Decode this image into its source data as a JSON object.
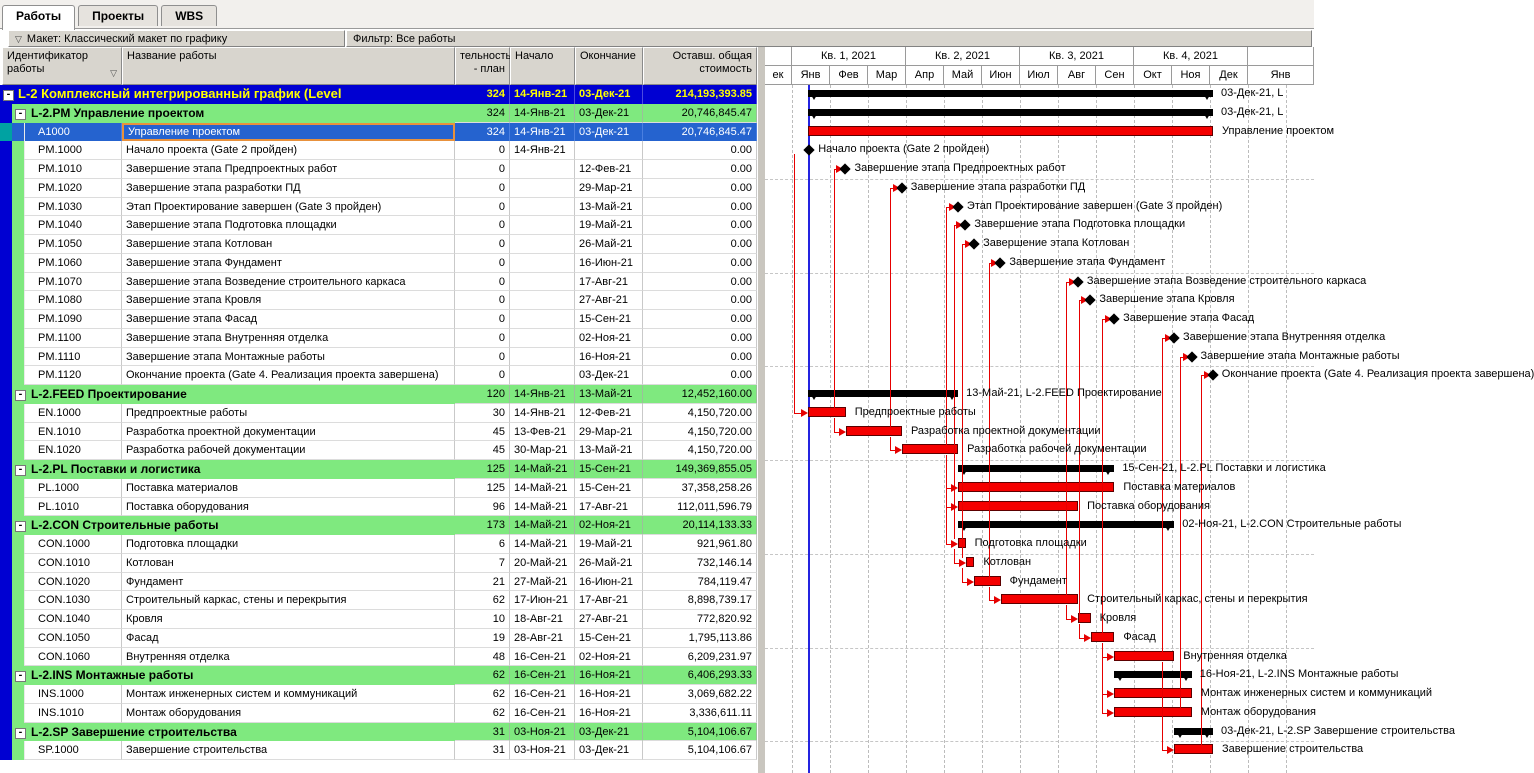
{
  "tabs": [
    {
      "label": "Работы",
      "active": true
    },
    {
      "label": "Проекты",
      "active": false
    },
    {
      "label": "WBS",
      "active": false
    }
  ],
  "toolbar": {
    "layout_label": "Макет: Классический макет по графику",
    "filter_label": "Фильтр: Все работы",
    "chevron_icon": "▽"
  },
  "table": {
    "columns": {
      "id": {
        "line1": "Идентификатор",
        "line2": "работы",
        "filter_icon": "▽"
      },
      "name": {
        "line1": "Название работы"
      },
      "duration": {
        "line1": "тельность",
        "line2": "- план"
      },
      "start": {
        "line1": "Начало"
      },
      "finish": {
        "line1": "Окончание"
      },
      "cost": {
        "line1": "Оставш. общая",
        "line2": "стоимость"
      }
    },
    "rows": [
      {
        "type": "project",
        "title": "L-2  Комплексный интегрированный график (Level",
        "dur": "324",
        "start": "14-Янв-21",
        "finish": "03-Дек-21",
        "cost": "214,193,393.85",
        "bar": {
          "kind": "summary",
          "s": "2021-01-14",
          "e": "2021-12-03",
          "label": "03-Дек-21, L"
        }
      },
      {
        "type": "section",
        "title": "L-2.PM  Управление проектом",
        "dur": "324",
        "start": "14-Янв-21",
        "finish": "03-Дек-21",
        "cost": "20,746,845.47",
        "bar": {
          "kind": "summary",
          "s": "2021-01-14",
          "e": "2021-12-03",
          "label": "03-Дек-21, L"
        }
      },
      {
        "type": "activity",
        "selected": true,
        "id": "A1000",
        "name": "Управление проектом",
        "dur": "324",
        "start": "14-Янв-21",
        "finish": "03-Дек-21",
        "cost": "20,746,845.47",
        "bar": {
          "kind": "task",
          "s": "2021-01-14",
          "e": "2021-12-03",
          "label": "Управление проектом"
        }
      },
      {
        "type": "activity",
        "id": "PM.1000",
        "name": "Начало проекта (Gate 2 пройден)",
        "dur": "0",
        "start": "14-Янв-21",
        "finish": "",
        "cost": "0.00",
        "bar": {
          "kind": "milestone",
          "d": "2021-01-14",
          "label": "Начало проекта (Gate 2 пройден)"
        }
      },
      {
        "type": "activity",
        "id": "PM.1010",
        "name": "Завершение этапа Предпроектных работ",
        "dur": "0",
        "start": "",
        "finish": "12-Фев-21",
        "cost": "0.00",
        "bar": {
          "kind": "milestone",
          "d": "2021-02-12",
          "label": "Завершение этапа Предпроектных работ"
        }
      },
      {
        "type": "activity",
        "id": "PM.1020",
        "name": "Завершение этапа разработки ПД",
        "dur": "0",
        "start": "",
        "finish": "29-Мар-21",
        "cost": "0.00",
        "bar": {
          "kind": "milestone",
          "d": "2021-03-29",
          "label": "Завершение этапа разработки ПД"
        }
      },
      {
        "type": "activity",
        "id": "PM.1030",
        "name": "Этап Проектирование завершен (Gate 3 пройден)",
        "dur": "0",
        "start": "",
        "finish": "13-Май-21",
        "cost": "0.00",
        "bar": {
          "kind": "milestone",
          "d": "2021-05-13",
          "label": "Этап Проектирование завершен (Gate 3 пройден)"
        }
      },
      {
        "type": "activity",
        "id": "PM.1040",
        "name": "Завершение этапа Подготовка площадки",
        "dur": "0",
        "start": "",
        "finish": "19-Май-21",
        "cost": "0.00",
        "bar": {
          "kind": "milestone",
          "d": "2021-05-19",
          "label": "Завершение этапа Подготовка площадки"
        }
      },
      {
        "type": "activity",
        "id": "PM.1050",
        "name": "Завершение этапа Котлован",
        "dur": "0",
        "start": "",
        "finish": "26-Май-21",
        "cost": "0.00",
        "bar": {
          "kind": "milestone",
          "d": "2021-05-26",
          "label": "Завершение этапа Котлован"
        }
      },
      {
        "type": "activity",
        "id": "PM.1060",
        "name": "Завершение этапа Фундамент",
        "dur": "0",
        "start": "",
        "finish": "16-Июн-21",
        "cost": "0.00",
        "bar": {
          "kind": "milestone",
          "d": "2021-06-16",
          "label": "Завершение этапа Фундамент"
        }
      },
      {
        "type": "activity",
        "id": "PM.1070",
        "name": "Завершение этапа Возведение строительного каркаса",
        "dur": "0",
        "start": "",
        "finish": "17-Авг-21",
        "cost": "0.00",
        "bar": {
          "kind": "milestone",
          "d": "2021-08-17",
          "label": "Завершение этапа Возведение строительного каркаса"
        }
      },
      {
        "type": "activity",
        "id": "PM.1080",
        "name": "Завершение этапа Кровля",
        "dur": "0",
        "start": "",
        "finish": "27-Авг-21",
        "cost": "0.00",
        "bar": {
          "kind": "milestone",
          "d": "2021-08-27",
          "label": "Завершение этапа Кровля"
        }
      },
      {
        "type": "activity",
        "id": "PM.1090",
        "name": "Завершение этапа Фасад",
        "dur": "0",
        "start": "",
        "finish": "15-Сен-21",
        "cost": "0.00",
        "bar": {
          "kind": "milestone",
          "d": "2021-09-15",
          "label": "Завершение этапа Фасад"
        }
      },
      {
        "type": "activity",
        "id": "PM.1100",
        "name": "Завершение этапа Внутренняя отделка",
        "dur": "0",
        "start": "",
        "finish": "02-Ноя-21",
        "cost": "0.00",
        "bar": {
          "kind": "milestone",
          "d": "2021-11-02",
          "label": "Завершение этапа Внутренняя отделка"
        }
      },
      {
        "type": "activity",
        "id": "PM.1110",
        "name": "Завершение этапа Монтажные работы",
        "dur": "0",
        "start": "",
        "finish": "16-Ноя-21",
        "cost": "0.00",
        "bar": {
          "kind": "milestone",
          "d": "2021-11-16",
          "label": "Завершение этапа Монтажные работы"
        }
      },
      {
        "type": "activity",
        "id": "PM.1120",
        "name": "Окончание проекта (Gate 4. Реализация проекта завершена)",
        "dur": "0",
        "start": "",
        "finish": "03-Дек-21",
        "cost": "0.00",
        "bar": {
          "kind": "milestone",
          "d": "2021-12-03",
          "label": "Окончание проекта (Gate 4. Реализация проекта завершена)"
        }
      },
      {
        "type": "section",
        "title": "L-2.FEED  Проектирование",
        "dur": "120",
        "start": "14-Янв-21",
        "finish": "13-Май-21",
        "cost": "12,452,160.00",
        "bar": {
          "kind": "summary",
          "s": "2021-01-14",
          "e": "2021-05-13",
          "label": "13-Май-21, L-2.FEED  Проектирование"
        }
      },
      {
        "type": "activity",
        "id": "EN.1000",
        "name": "Предпроектные работы",
        "dur": "30",
        "start": "14-Янв-21",
        "finish": "12-Фев-21",
        "cost": "4,150,720.00",
        "bar": {
          "kind": "task",
          "s": "2021-01-14",
          "e": "2021-02-12",
          "label": "Предпроектные работы"
        }
      },
      {
        "type": "activity",
        "id": "EN.1010",
        "name": "Разработка проектной документации",
        "dur": "45",
        "start": "13-Фев-21",
        "finish": "29-Мар-21",
        "cost": "4,150,720.00",
        "bar": {
          "kind": "task",
          "s": "2021-02-13",
          "e": "2021-03-29",
          "label": "Разработка проектной документации"
        }
      },
      {
        "type": "activity",
        "id": "EN.1020",
        "name": "Разработка рабочей документации",
        "dur": "45",
        "start": "30-Мар-21",
        "finish": "13-Май-21",
        "cost": "4,150,720.00",
        "bar": {
          "kind": "task",
          "s": "2021-03-30",
          "e": "2021-05-13",
          "label": "Разработка рабочей документации"
        }
      },
      {
        "type": "section",
        "title": "L-2.PL  Поставки и логистика",
        "dur": "125",
        "start": "14-Май-21",
        "finish": "15-Сен-21",
        "cost": "149,369,855.05",
        "bar": {
          "kind": "summary",
          "s": "2021-05-14",
          "e": "2021-09-15",
          "label": "15-Сен-21, L-2.PL  Поставки и логистика"
        }
      },
      {
        "type": "activity",
        "id": "PL.1000",
        "name": "Поставка материалов",
        "dur": "125",
        "start": "14-Май-21",
        "finish": "15-Сен-21",
        "cost": "37,358,258.26",
        "bar": {
          "kind": "task",
          "s": "2021-05-14",
          "e": "2021-09-15",
          "label": "Поставка материалов"
        }
      },
      {
        "type": "activity",
        "id": "PL.1010",
        "name": "Поставка оборудования",
        "dur": "96",
        "start": "14-Май-21",
        "finish": "17-Авг-21",
        "cost": "112,011,596.79",
        "bar": {
          "kind": "task",
          "s": "2021-05-14",
          "e": "2021-08-17",
          "label": "Поставка оборудования"
        }
      },
      {
        "type": "section",
        "title": "L-2.CON  Строительные работы",
        "dur": "173",
        "start": "14-Май-21",
        "finish": "02-Ноя-21",
        "cost": "20,114,133.33",
        "bar": {
          "kind": "summary",
          "s": "2021-05-14",
          "e": "2021-11-02",
          "label": "02-Ноя-21, L-2.CON  Строительные работы"
        }
      },
      {
        "type": "activity",
        "id": "CON.1000",
        "name": "Подготовка площадки",
        "dur": "6",
        "start": "14-Май-21",
        "finish": "19-Май-21",
        "cost": "921,961.80",
        "bar": {
          "kind": "task",
          "s": "2021-05-14",
          "e": "2021-05-19",
          "label": "Подготовка площадки"
        }
      },
      {
        "type": "activity",
        "id": "CON.1010",
        "name": "Котлован",
        "dur": "7",
        "start": "20-Май-21",
        "finish": "26-Май-21",
        "cost": "732,146.14",
        "bar": {
          "kind": "task",
          "s": "2021-05-20",
          "e": "2021-05-26",
          "label": "Котлован"
        }
      },
      {
        "type": "activity",
        "id": "CON.1020",
        "name": "Фундамент",
        "dur": "21",
        "start": "27-Май-21",
        "finish": "16-Июн-21",
        "cost": "784,119.47",
        "bar": {
          "kind": "task",
          "s": "2021-05-27",
          "e": "2021-06-16",
          "label": "Фундамент"
        }
      },
      {
        "type": "activity",
        "id": "CON.1030",
        "name": "Строительный каркас, стены и перекрытия",
        "dur": "62",
        "start": "17-Июн-21",
        "finish": "17-Авг-21",
        "cost": "8,898,739.17",
        "bar": {
          "kind": "task",
          "s": "2021-06-17",
          "e": "2021-08-17",
          "label": "Строительный каркас, стены и перекрытия"
        }
      },
      {
        "type": "activity",
        "id": "CON.1040",
        "name": "Кровля",
        "dur": "10",
        "start": "18-Авг-21",
        "finish": "27-Авг-21",
        "cost": "772,820.92",
        "bar": {
          "kind": "task",
          "s": "2021-08-18",
          "e": "2021-08-27",
          "label": "Кровля"
        }
      },
      {
        "type": "activity",
        "id": "CON.1050",
        "name": "Фасад",
        "dur": "19",
        "start": "28-Авг-21",
        "finish": "15-Сен-21",
        "cost": "1,795,113.86",
        "bar": {
          "kind": "task",
          "s": "2021-08-28",
          "e": "2021-09-15",
          "label": "Фасад"
        }
      },
      {
        "type": "activity",
        "id": "CON.1060",
        "name": "Внутренняя отделка",
        "dur": "48",
        "start": "16-Сен-21",
        "finish": "02-Ноя-21",
        "cost": "6,209,231.97",
        "bar": {
          "kind": "task",
          "s": "2021-09-16",
          "e": "2021-11-02",
          "label": "Внутренняя отделка"
        }
      },
      {
        "type": "section",
        "title": "L-2.INS  Монтажные работы",
        "dur": "62",
        "start": "16-Сен-21",
        "finish": "16-Ноя-21",
        "cost": "6,406,293.33",
        "bar": {
          "kind": "summary",
          "s": "2021-09-16",
          "e": "2021-11-16",
          "label": "16-Ноя-21, L-2.INS  Монтажные работы"
        }
      },
      {
        "type": "activity",
        "id": "INS.1000",
        "name": "Монтаж инженерных систем и коммуникаций",
        "dur": "62",
        "start": "16-Сен-21",
        "finish": "16-Ноя-21",
        "cost": "3,069,682.22",
        "bar": {
          "kind": "task",
          "s": "2021-09-16",
          "e": "2021-11-16",
          "label": "Монтаж инженерных систем и коммуникаций"
        }
      },
      {
        "type": "activity",
        "id": "INS.1010",
        "name": "Монтаж оборудования",
        "dur": "62",
        "start": "16-Сен-21",
        "finish": "16-Ноя-21",
        "cost": "3,336,611.11",
        "bar": {
          "kind": "task",
          "s": "2021-09-16",
          "e": "2021-11-16",
          "label": "Монтаж оборудования"
        }
      },
      {
        "type": "section",
        "title": "L-2.SP  Завершение строительства",
        "dur": "31",
        "start": "03-Ноя-21",
        "finish": "03-Дек-21",
        "cost": "5,104,106.67",
        "bar": {
          "kind": "summary",
          "s": "2021-11-03",
          "e": "2021-12-03",
          "label": "03-Дек-21, L-2.SP  Завершение строительства"
        }
      },
      {
        "type": "activity",
        "id": "SP.1000",
        "name": "Завершение строительства",
        "dur": "31",
        "start": "03-Ноя-21",
        "finish": "03-Дек-21",
        "cost": "5,104,106.67",
        "bar": {
          "kind": "task",
          "s": "2021-11-03",
          "e": "2021-12-03",
          "label": "Завершение строительства"
        }
      }
    ]
  },
  "gantt": {
    "quarters": [
      {
        "label": "",
        "w": 27
      },
      {
        "label": "Кв. 1, 2021",
        "w": 114
      },
      {
        "label": "Кв. 2, 2021",
        "w": 114
      },
      {
        "label": "Кв. 3, 2021",
        "w": 114
      },
      {
        "label": "Кв. 4, 2021",
        "w": 114
      },
      {
        "label": "",
        "w": 66
      }
    ],
    "months": [
      {
        "label": "ек",
        "w": 27
      },
      {
        "label": "Янв",
        "w": 38
      },
      {
        "label": "Фев",
        "w": 38
      },
      {
        "label": "Мар",
        "w": 38
      },
      {
        "label": "Апр",
        "w": 38
      },
      {
        "label": "Май",
        "w": 38
      },
      {
        "label": "Июн",
        "w": 38
      },
      {
        "label": "Июл",
        "w": 38
      },
      {
        "label": "Авг",
        "w": 38
      },
      {
        "label": "Сен",
        "w": 38
      },
      {
        "label": "Окт",
        "w": 38
      },
      {
        "label": "Ноя",
        "w": 38
      },
      {
        "label": "Дек",
        "w": 38
      },
      {
        "label": "Янв",
        "w": 66
      }
    ],
    "data_date": "2021-01-14",
    "relationships": [
      {
        "pred": "PM.1000",
        "succ": "EN.1000",
        "type": "SS"
      },
      {
        "pred": "EN.1000",
        "succ": "PM.1010",
        "type": "FF"
      },
      {
        "pred": "EN.1010",
        "succ": "PM.1020",
        "type": "FF"
      },
      {
        "pred": "EN.1020",
        "succ": "PM.1030",
        "type": "FF"
      },
      {
        "pred": "CON.1000",
        "succ": "PM.1040",
        "type": "FF"
      },
      {
        "pred": "CON.1010",
        "succ": "PM.1050",
        "type": "FF"
      },
      {
        "pred": "CON.1020",
        "succ": "PM.1060",
        "type": "FF"
      },
      {
        "pred": "CON.1030",
        "succ": "PM.1070",
        "type": "FF"
      },
      {
        "pred": "CON.1040",
        "succ": "PM.1080",
        "type": "FF"
      },
      {
        "pred": "CON.1050",
        "succ": "PM.1090",
        "type": "FF"
      },
      {
        "pred": "CON.1060",
        "succ": "PM.1100",
        "type": "FF"
      },
      {
        "pred": "INS.1000",
        "succ": "PM.1110",
        "type": "FF"
      },
      {
        "pred": "INS.1010",
        "succ": "PM.1110",
        "type": "FF"
      },
      {
        "pred": "SP.1000",
        "succ": "PM.1120",
        "type": "FF"
      },
      {
        "pred": "EN.1000",
        "succ": "EN.1010",
        "type": "FS"
      },
      {
        "pred": "EN.1010",
        "succ": "EN.1020",
        "type": "FS"
      },
      {
        "pred": "EN.1020",
        "succ": "PL.1000",
        "type": "FS"
      },
      {
        "pred": "EN.1020",
        "succ": "PL.1010",
        "type": "FS"
      },
      {
        "pred": "EN.1020",
        "succ": "CON.1000",
        "type": "FS"
      },
      {
        "pred": "CON.1000",
        "succ": "CON.1010",
        "type": "FS"
      },
      {
        "pred": "CON.1010",
        "succ": "CON.1020",
        "type": "FS"
      },
      {
        "pred": "CON.1020",
        "succ": "CON.1030",
        "type": "FS"
      },
      {
        "pred": "CON.1030",
        "succ": "CON.1040",
        "type": "FS"
      },
      {
        "pred": "CON.1040",
        "succ": "CON.1050",
        "type": "FS"
      },
      {
        "pred": "CON.1050",
        "succ": "CON.1060",
        "type": "FS"
      },
      {
        "pred": "CON.1050",
        "succ": "INS.1000",
        "type": "FS"
      },
      {
        "pred": "CON.1050",
        "succ": "INS.1010",
        "type": "FS"
      },
      {
        "pred": "CON.1060",
        "succ": "SP.1000",
        "type": "FS"
      }
    ],
    "colors": {
      "task_bar": "#f50000",
      "summary_bar": "#000000",
      "relationship_line": "#e60000",
      "data_date_line": "#2424e0"
    }
  },
  "colors": {
    "project_row_bg": "#0000d2",
    "project_row_text": "#ffff00",
    "section_row_bg": "#7fe97f",
    "selected_row_bg": "#2563cf",
    "selected_marker": "#00a2a2",
    "selected_cell_border": "#e8913c",
    "toolbar_bg": "#d8d5ce"
  }
}
